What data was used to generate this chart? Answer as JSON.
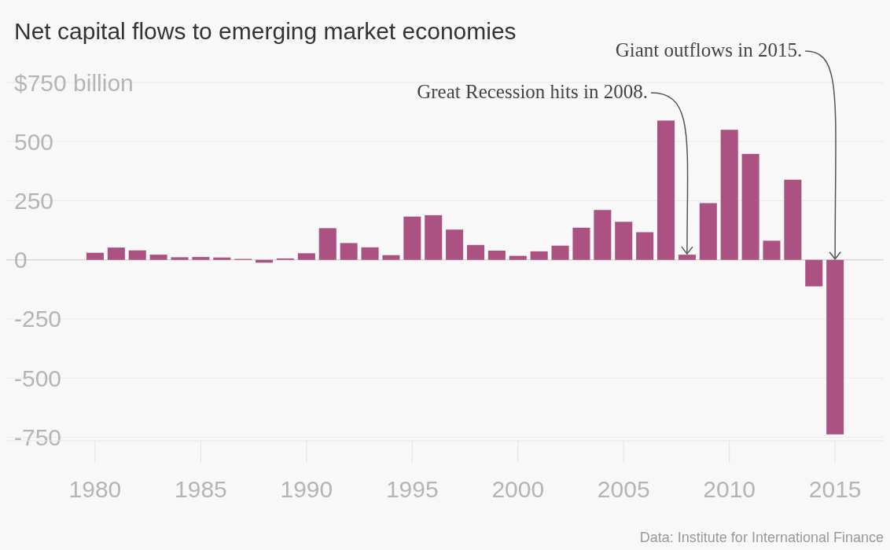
{
  "chart_data": {
    "type": "bar",
    "title": "Net capital flows to emerging market economies",
    "x": [
      1980,
      1981,
      1982,
      1983,
      1984,
      1985,
      1986,
      1987,
      1988,
      1989,
      1990,
      1991,
      1992,
      1993,
      1994,
      1995,
      1996,
      1997,
      1998,
      1999,
      2000,
      2001,
      2002,
      2003,
      2004,
      2005,
      2006,
      2007,
      2008,
      2009,
      2010,
      2011,
      2012,
      2013,
      2014,
      2015
    ],
    "values": [
      30,
      52,
      40,
      22,
      11,
      12,
      10,
      4,
      -12,
      6,
      28,
      134,
      71,
      53,
      20,
      183,
      189,
      128,
      63,
      39,
      17,
      36,
      60,
      136,
      211,
      161,
      117,
      589,
      22,
      240,
      550,
      448,
      81,
      339,
      -112,
      -738
    ],
    "color": "#ab5282",
    "xlim": [
      1975.8,
      2017.3
    ],
    "xticks": [
      1980,
      1985,
      1990,
      1995,
      2000,
      2005,
      2010,
      2015
    ],
    "ylim": [
      -765,
      750
    ],
    "yticks": [
      {
        "value": 750,
        "label": "$750 billion"
      },
      500,
      250,
      0,
      -250,
      -500,
      -750
    ],
    "grid": "y",
    "annotations": [
      {
        "text": "Great Recession hits in 2008.",
        "x": 2008,
        "y": 22
      },
      {
        "text": "Giant outflows in 2015.",
        "x": 2015,
        "y": 0
      },
      "Data: Institute for International Finance"
    ]
  }
}
